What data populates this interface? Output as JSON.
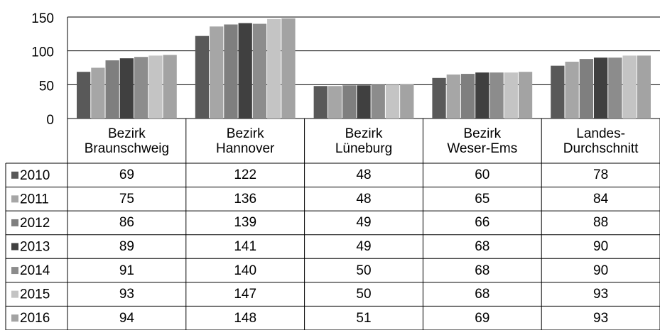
{
  "chart_data": {
    "type": "bar",
    "categories": [
      "Bezirk\nBraunschweig",
      "Bezirk\nHannover",
      "Bezirk\nLüneburg",
      "Bezirk\nWeser-Ems",
      "Landes-\nDurchschnitt"
    ],
    "series": [
      {
        "name": "2010",
        "color": "#595959",
        "values": [
          69,
          122,
          48,
          60,
          78
        ]
      },
      {
        "name": "2011",
        "color": "#a6a6a6",
        "values": [
          75,
          136,
          48,
          65,
          84
        ]
      },
      {
        "name": "2012",
        "color": "#7f7f7f",
        "values": [
          86,
          139,
          49,
          66,
          88
        ]
      },
      {
        "name": "2013",
        "color": "#404040",
        "values": [
          89,
          141,
          49,
          68,
          90
        ]
      },
      {
        "name": "2014",
        "color": "#8c8c8c",
        "values": [
          91,
          140,
          50,
          68,
          90
        ]
      },
      {
        "name": "2015",
        "color": "#c4c4c4",
        "values": [
          93,
          147,
          50,
          68,
          93
        ]
      },
      {
        "name": "2016",
        "color": "#a3a3a3",
        "values": [
          94,
          148,
          51,
          69,
          93
        ]
      }
    ],
    "ylim": [
      0,
      150
    ],
    "yticks": [
      0,
      50,
      100,
      150
    ],
    "grid": true
  }
}
